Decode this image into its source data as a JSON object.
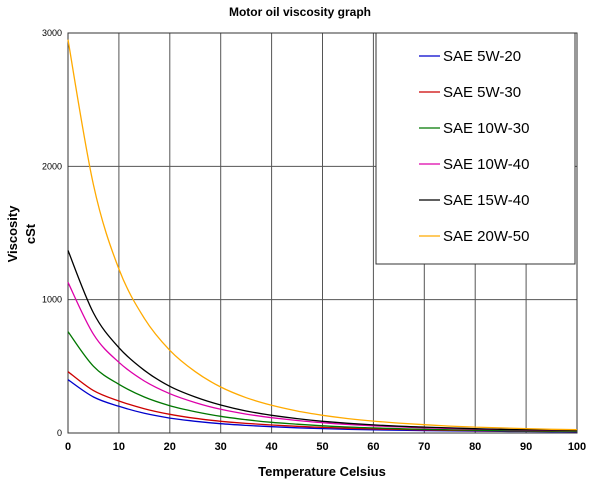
{
  "chart_data": {
    "type": "line",
    "title": "Motor oil viscosity graph",
    "xlabel": "Temperature Celsius",
    "ylabel": [
      "Viscosity",
      "cSt"
    ],
    "xlim": [
      0,
      100
    ],
    "ylim": [
      0,
      3000
    ],
    "xticks": [
      0,
      10,
      20,
      30,
      40,
      50,
      60,
      70,
      80,
      90,
      100
    ],
    "yticks": [
      0,
      1000,
      2000,
      3000
    ],
    "grid": true,
    "legend_position": "top-right",
    "x": [
      0,
      5,
      10,
      15,
      20,
      25,
      30,
      35,
      40,
      45,
      50,
      55,
      60,
      65,
      70,
      75,
      80,
      85,
      90,
      95,
      100
    ],
    "series": [
      {
        "name": "SAE 5W-20",
        "color": "#0000cc",
        "values": [
          400,
          270,
          200,
          148,
          112,
          88,
          70,
          57,
          47,
          39,
          33,
          28,
          24,
          21,
          18,
          16,
          14,
          12,
          11,
          10,
          9
        ]
      },
      {
        "name": "SAE 5W-30",
        "color": "#cc0000",
        "values": [
          460,
          318,
          240,
          182,
          140,
          110,
          88,
          72,
          60,
          50,
          42,
          36,
          31,
          27,
          23,
          20,
          18,
          16,
          14,
          13,
          11
        ]
      },
      {
        "name": "SAE 10W-30",
        "color": "#007700",
        "values": [
          760,
          500,
          365,
          270,
          205,
          160,
          125,
          100,
          80,
          66,
          54,
          45,
          38,
          32,
          28,
          24,
          21,
          18,
          16,
          14,
          12
        ]
      },
      {
        "name": "SAE 10W-40",
        "color": "#dd00aa",
        "values": [
          1130,
          740,
          530,
          390,
          295,
          228,
          178,
          142,
          115,
          94,
          77,
          64,
          54,
          46,
          39,
          34,
          29,
          26,
          22,
          20,
          18
        ]
      },
      {
        "name": "SAE 15W-40",
        "color": "#000000",
        "values": [
          1370,
          900,
          640,
          470,
          350,
          270,
          210,
          165,
          133,
          108,
          88,
          73,
          61,
          51,
          44,
          38,
          32,
          28,
          25,
          22,
          19
        ]
      },
      {
        "name": "SAE 20W-50",
        "color": "#ffaa00",
        "values": [
          2950,
          1860,
          1230,
          860,
          620,
          460,
          345,
          265,
          208,
          165,
          133,
          108,
          89,
          74,
          62,
          52,
          44,
          38,
          33,
          28,
          25
        ]
      }
    ]
  }
}
